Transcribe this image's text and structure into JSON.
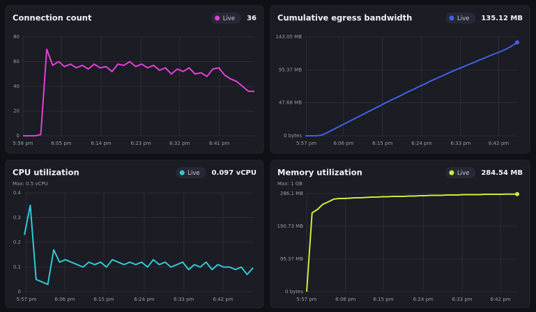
{
  "chart_data": [
    {
      "type": "line",
      "title": "Connection count",
      "badge": "Live",
      "current_value": 36,
      "xlim": [
        0,
        39
      ],
      "ylim": [
        0,
        80
      ],
      "grid": true,
      "xticks": [
        {
          "value": 0,
          "label": "5:58 pm"
        },
        {
          "value": 6.46,
          "label": "6:05 pm"
        },
        {
          "value": 13.16,
          "label": "6:14 pm"
        },
        {
          "value": 19.86,
          "label": "6:23 pm"
        },
        {
          "value": 26.4,
          "label": "6:32 pm"
        },
        {
          "value": 33.1,
          "label": "6:41 pm"
        }
      ],
      "yticks": [
        0,
        20,
        40,
        60,
        80
      ],
      "series": [
        {
          "color": "#e53fd8",
          "values": [
            0,
            0,
            0,
            1,
            70,
            57,
            60,
            56,
            58,
            55,
            57,
            54,
            58,
            55,
            56,
            52,
            58,
            57,
            60,
            56,
            58,
            55,
            57,
            53,
            55,
            50,
            54,
            52,
            55,
            50,
            51,
            48,
            54,
            55,
            49,
            46,
            44,
            40,
            36,
            36
          ]
        }
      ]
    },
    {
      "type": "line",
      "title": "Cumulative egress bandwidth",
      "badge": "Live",
      "current_value": "135.12 MB",
      "xlim": [
        0,
        39
      ],
      "ylim": [
        0,
        143.05
      ],
      "grid": true,
      "end_marker": true,
      "xticks": [
        {
          "value": 0.2,
          "label": "5:57 pm"
        },
        {
          "value": 7.05,
          "label": "6:06 pm"
        },
        {
          "value": 14.2,
          "label": "6:15 pm"
        },
        {
          "value": 21.4,
          "label": "6:24 pm"
        },
        {
          "value": 28.6,
          "label": "6:33 pm"
        },
        {
          "value": 35.6,
          "label": "6:42 pm"
        }
      ],
      "yticks": [
        {
          "value": 0,
          "label": "0 bytes"
        },
        {
          "value": 47.68,
          "label": "47.68 MB"
        },
        {
          "value": 95.37,
          "label": "95.37 MB"
        },
        {
          "value": 143.05,
          "label": "143.05 MB"
        }
      ],
      "series": [
        {
          "color": "#3f62e8",
          "values": [
            0,
            0,
            0,
            1,
            4.5,
            8.5,
            12.5,
            16.5,
            20.5,
            24.5,
            28.5,
            32.5,
            36.5,
            40.5,
            44.5,
            48.5,
            52.5,
            56,
            60,
            64,
            67.5,
            71.5,
            75,
            79,
            82.5,
            86,
            89.5,
            93,
            96.5,
            99.5,
            103,
            106,
            109.5,
            112.5,
            116,
            119,
            122,
            125.5,
            130,
            135.12
          ]
        }
      ]
    },
    {
      "type": "line",
      "title": "CPU utilization",
      "subtitle": "Max: 0.5 vCPU",
      "badge": "Live",
      "current_value": "0.097 vCPU",
      "xlim": [
        0,
        39
      ],
      "ylim": [
        0,
        0.4
      ],
      "grid": true,
      "xticks": [
        {
          "value": 0.35,
          "label": "5:57 pm"
        },
        {
          "value": 6.9,
          "label": "6:06 pm"
        },
        {
          "value": 13.55,
          "label": "6:15 pm"
        },
        {
          "value": 20.45,
          "label": "6:24 pm"
        },
        {
          "value": 27.2,
          "label": "6:33 pm"
        },
        {
          "value": 33.9,
          "label": "6:42 pm"
        }
      ],
      "yticks": [
        0,
        0.1,
        0.2,
        0.3,
        0.4
      ],
      "series": [
        {
          "color": "#2fcad6",
          "values": [
            0.23,
            0.35,
            0.05,
            0.04,
            0.03,
            0.17,
            0.12,
            0.13,
            0.12,
            0.11,
            0.1,
            0.12,
            0.11,
            0.12,
            0.1,
            0.13,
            0.12,
            0.11,
            0.12,
            0.11,
            0.12,
            0.1,
            0.13,
            0.11,
            0.12,
            0.1,
            0.11,
            0.12,
            0.09,
            0.11,
            0.1,
            0.12,
            0.09,
            0.11,
            0.1,
            0.1,
            0.09,
            0.1,
            0.07,
            0.097
          ]
        }
      ]
    },
    {
      "type": "line",
      "title": "Memory utilization",
      "subtitle": "Max: 1 GB",
      "badge": "Live",
      "current_value": "284.54 MB",
      "xlim": [
        0,
        39
      ],
      "ylim": [
        0,
        286.1
      ],
      "grid": true,
      "end_marker": true,
      "xticks": [
        {
          "value": 0,
          "label": "5:57 pm"
        },
        {
          "value": 7.2,
          "label": "6:06 pm"
        },
        {
          "value": 14.2,
          "label": "6:15 pm"
        },
        {
          "value": 21.6,
          "label": "6:24 pm"
        },
        {
          "value": 28.8,
          "label": "6:33 pm"
        },
        {
          "value": 35.9,
          "label": "6:42 pm"
        }
      ],
      "yticks": [
        {
          "value": 0,
          "label": "0 bytes"
        },
        {
          "value": 95.37,
          "label": "95.37 MB"
        },
        {
          "value": 190.73,
          "label": "190.73 MB"
        },
        {
          "value": 286.1,
          "label": "286.1 MB"
        }
      ],
      "series": [
        {
          "color": "#c6f13a",
          "values": [
            0,
            230,
            240,
            255,
            262,
            270,
            272,
            272,
            273,
            274,
            274,
            275,
            276,
            276,
            277,
            277,
            278,
            278,
            278,
            279,
            279,
            280,
            280,
            281,
            281,
            281,
            282,
            282,
            282,
            283,
            283,
            283,
            283,
            284,
            284,
            284,
            284,
            284.5,
            284.5,
            284.54
          ]
        }
      ]
    }
  ]
}
